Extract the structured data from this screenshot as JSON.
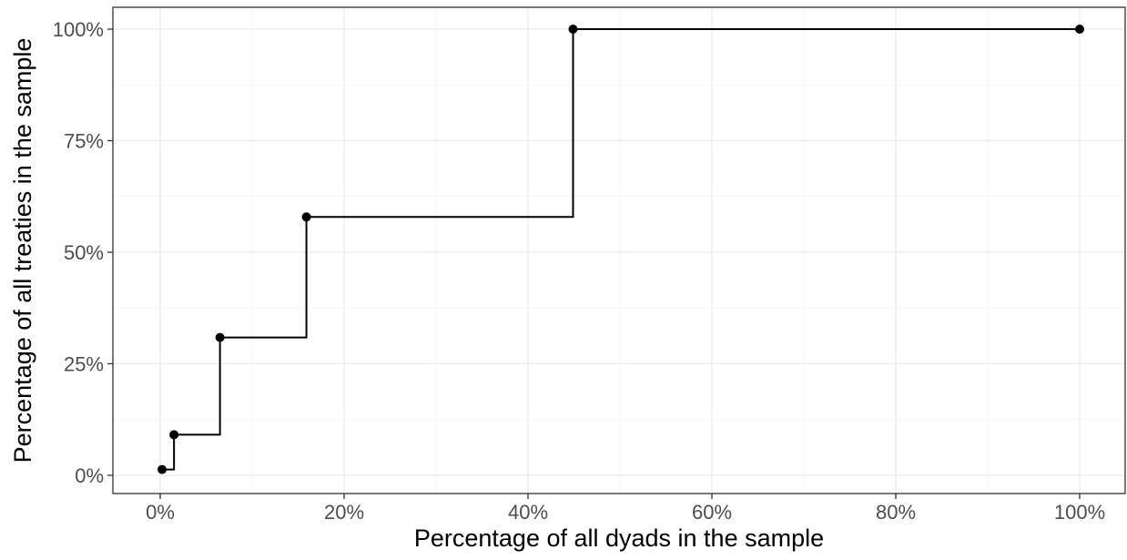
{
  "chart_data": {
    "type": "line",
    "step": true,
    "title": "",
    "xlabel": "Percentage of all dyads in the sample",
    "ylabel": "Percentage of all treaties in the sample",
    "xlim": [
      0,
      100
    ],
    "ylim": [
      0,
      100
    ],
    "x_ticks": [
      0,
      20,
      40,
      60,
      80,
      100
    ],
    "y_ticks": [
      0,
      25,
      50,
      75,
      100
    ],
    "x_tick_labels": [
      "0%",
      "20%",
      "40%",
      "60%",
      "80%",
      "100%"
    ],
    "y_tick_labels": [
      "0%",
      "25%",
      "50%",
      "75%",
      "100%"
    ],
    "grid": true,
    "legend": "none",
    "series": [
      {
        "x": [
          0.2,
          1.5,
          6.5,
          15.9,
          44.9,
          100
        ],
        "y": [
          1.3,
          9.1,
          30.9,
          57.9,
          100,
          100
        ]
      }
    ]
  }
}
